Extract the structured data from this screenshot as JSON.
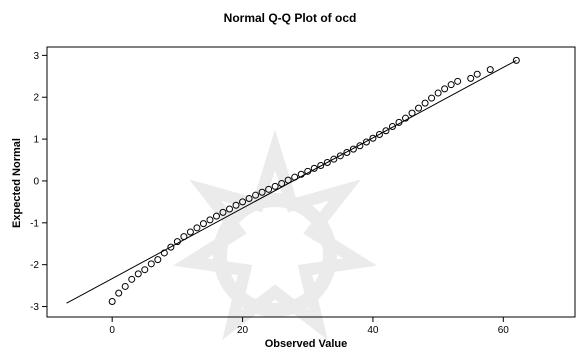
{
  "chart_data": {
    "type": "scatter",
    "title": "Normal Q-Q Plot of ocd",
    "xlabel": "Observed Value",
    "ylabel": "Expected Normal",
    "xlim": [
      -10,
      71
    ],
    "ylim": [
      -3.25,
      3.2
    ],
    "x_ticks": [
      0,
      20,
      40,
      60
    ],
    "y_ticks": [
      -3,
      -2,
      -1,
      0,
      1,
      2,
      3
    ],
    "grid": false,
    "legend": "none",
    "reference_line": {
      "x": [
        -7,
        62
      ],
      "y": [
        -2.92,
        2.88
      ]
    },
    "series": [
      {
        "marker": "open-circle",
        "x": [
          0,
          1,
          2,
          3,
          4,
          5,
          6,
          7,
          8,
          9,
          10,
          11,
          12,
          13,
          14,
          15,
          16,
          17,
          18,
          19,
          20,
          21,
          22,
          23,
          24,
          25,
          26,
          27,
          28,
          29,
          30,
          31,
          32,
          33,
          34,
          35,
          36,
          37,
          38,
          39,
          40,
          41,
          42,
          43,
          44,
          45,
          46,
          47,
          48,
          49,
          50,
          51,
          52,
          53,
          55,
          56,
          58,
          62
        ],
        "y": [
          -2.88,
          -2.68,
          -2.52,
          -2.35,
          -2.22,
          -2.12,
          -1.98,
          -1.88,
          -1.72,
          -1.58,
          -1.45,
          -1.33,
          -1.22,
          -1.12,
          -1.02,
          -0.93,
          -0.84,
          -0.75,
          -0.67,
          -0.58,
          -0.5,
          -0.42,
          -0.34,
          -0.27,
          -0.2,
          -0.13,
          -0.06,
          0.02,
          0.09,
          0.16,
          0.23,
          0.3,
          0.37,
          0.44,
          0.52,
          0.6,
          0.68,
          0.76,
          0.84,
          0.93,
          1.02,
          1.11,
          1.2,
          1.3,
          1.4,
          1.5,
          1.62,
          1.74,
          1.86,
          1.98,
          2.1,
          2.2,
          2.3,
          2.38,
          2.45,
          2.55,
          2.66,
          2.88
        ]
      }
    ]
  }
}
